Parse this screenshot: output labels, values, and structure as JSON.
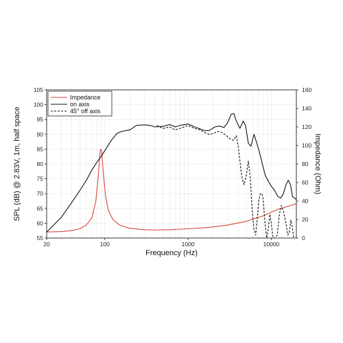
{
  "chart_data": {
    "type": "line",
    "xlabel": "Frequency (Hz)",
    "ylabel": "SPL (dB) @ 2.83V, 1m, half space",
    "y2label": "Impedance (Ohm)",
    "x_scale": "log",
    "xlim": [
      20,
      20000
    ],
    "ylim": [
      55,
      105
    ],
    "y2lim": [
      0,
      160
    ],
    "x_ticks": [
      20,
      100,
      1000,
      10000
    ],
    "x_tick_labels": [
      "20",
      "100",
      "1000",
      "10000"
    ],
    "y_ticks": [
      55,
      60,
      65,
      70,
      75,
      80,
      85,
      90,
      95,
      100,
      105
    ],
    "y_tick_labels": [
      "55",
      "60",
      "65",
      "70",
      "75",
      "80",
      "85",
      "90",
      "95",
      "100",
      "105"
    ],
    "y2_ticks": [
      0,
      20,
      40,
      60,
      80,
      100,
      120,
      140,
      160
    ],
    "y2_tick_labels": [
      "0",
      "20",
      "40",
      "60",
      "80",
      "100",
      "120",
      "140",
      "160"
    ],
    "grid": true,
    "legend_position": "top-left",
    "series": [
      {
        "name": "Impedance",
        "axis": "right",
        "color": "#d9453a",
        "style": "solid",
        "points": [
          [
            20,
            6.5
          ],
          [
            30,
            7
          ],
          [
            40,
            8
          ],
          [
            50,
            10
          ],
          [
            60,
            14
          ],
          [
            70,
            22
          ],
          [
            78,
            40
          ],
          [
            84,
            70
          ],
          [
            88,
            94
          ],
          [
            90,
            96
          ],
          [
            92,
            92
          ],
          [
            96,
            70
          ],
          [
            102,
            45
          ],
          [
            110,
            30
          ],
          [
            125,
            20
          ],
          [
            150,
            14
          ],
          [
            200,
            10.5
          ],
          [
            300,
            9
          ],
          [
            400,
            8.7
          ],
          [
            600,
            9
          ],
          [
            1000,
            10
          ],
          [
            1500,
            11
          ],
          [
            2000,
            12
          ],
          [
            3000,
            14
          ],
          [
            5000,
            18
          ],
          [
            8000,
            24
          ],
          [
            12000,
            31
          ],
          [
            20000,
            37
          ]
        ]
      },
      {
        "name": "on axis",
        "axis": "left",
        "color": "#111111",
        "style": "solid",
        "points": [
          [
            20,
            57
          ],
          [
            30,
            62
          ],
          [
            40,
            67
          ],
          [
            50,
            71
          ],
          [
            60,
            74.5
          ],
          [
            70,
            78
          ],
          [
            80,
            80.5
          ],
          [
            90,
            82.5
          ],
          [
            100,
            84.5
          ],
          [
            120,
            88
          ],
          [
            140,
            90.3
          ],
          [
            160,
            91
          ],
          [
            200,
            91.5
          ],
          [
            240,
            93
          ],
          [
            300,
            93.2
          ],
          [
            350,
            93
          ],
          [
            400,
            92.5
          ],
          [
            500,
            92.7
          ],
          [
            600,
            93.3
          ],
          [
            700,
            92.5
          ],
          [
            800,
            93
          ],
          [
            1000,
            93.5
          ],
          [
            1200,
            92.5
          ],
          [
            1400,
            91.8
          ],
          [
            1600,
            91.2
          ],
          [
            1800,
            91.3
          ],
          [
            2100,
            92.5
          ],
          [
            2400,
            92.8
          ],
          [
            2700,
            92.3
          ],
          [
            3000,
            94
          ],
          [
            3300,
            96.8
          ],
          [
            3550,
            97
          ],
          [
            3800,
            94.5
          ],
          [
            4200,
            92
          ],
          [
            4600,
            94.5
          ],
          [
            4900,
            93
          ],
          [
            5300,
            87
          ],
          [
            5700,
            86
          ],
          [
            6200,
            90
          ],
          [
            6700,
            87
          ],
          [
            7200,
            84
          ],
          [
            7800,
            80
          ],
          [
            8500,
            76
          ],
          [
            9300,
            74
          ],
          [
            10000,
            72.5
          ],
          [
            11000,
            71
          ],
          [
            12000,
            69
          ],
          [
            13000,
            68.5
          ],
          [
            14000,
            70
          ],
          [
            15000,
            73
          ],
          [
            16000,
            74.5
          ],
          [
            17000,
            73
          ],
          [
            18000,
            69
          ],
          [
            20000,
            68
          ]
        ]
      },
      {
        "name": "45° off axis",
        "axis": "left",
        "color": "#111111",
        "style": "dashed",
        "points": [
          [
            420,
            93
          ],
          [
            500,
            92
          ],
          [
            600,
            92.5
          ],
          [
            700,
            91.5
          ],
          [
            800,
            92
          ],
          [
            1000,
            93
          ],
          [
            1200,
            92
          ],
          [
            1400,
            91.5
          ],
          [
            1600,
            90.5
          ],
          [
            1800,
            90
          ],
          [
            2000,
            90.3
          ],
          [
            2300,
            91
          ],
          [
            2600,
            90.5
          ],
          [
            2900,
            89.5
          ],
          [
            3200,
            88.5
          ],
          [
            3500,
            88
          ],
          [
            3800,
            89.5
          ],
          [
            4000,
            86
          ],
          [
            4200,
            81
          ],
          [
            4400,
            76
          ],
          [
            4700,
            73
          ],
          [
            5000,
            76
          ],
          [
            5300,
            81
          ],
          [
            5600,
            75
          ],
          [
            5900,
            64
          ],
          [
            6200,
            58
          ],
          [
            6500,
            56
          ],
          [
            6800,
            62
          ],
          [
            7100,
            68
          ],
          [
            7400,
            70
          ],
          [
            7700,
            70
          ],
          [
            8000,
            68
          ],
          [
            8400,
            60
          ],
          [
            8800,
            55
          ],
          [
            9200,
            58
          ],
          [
            9600,
            63
          ],
          [
            10000,
            60
          ],
          [
            10500,
            55
          ],
          [
            11000,
            55
          ],
          [
            11800,
            56
          ],
          [
            12500,
            63
          ],
          [
            13200,
            66
          ],
          [
            14000,
            64
          ],
          [
            15000,
            60
          ],
          [
            15800,
            56
          ],
          [
            16500,
            57
          ],
          [
            17200,
            61
          ],
          [
            17800,
            59
          ],
          [
            18600,
            55
          ]
        ]
      }
    ]
  }
}
